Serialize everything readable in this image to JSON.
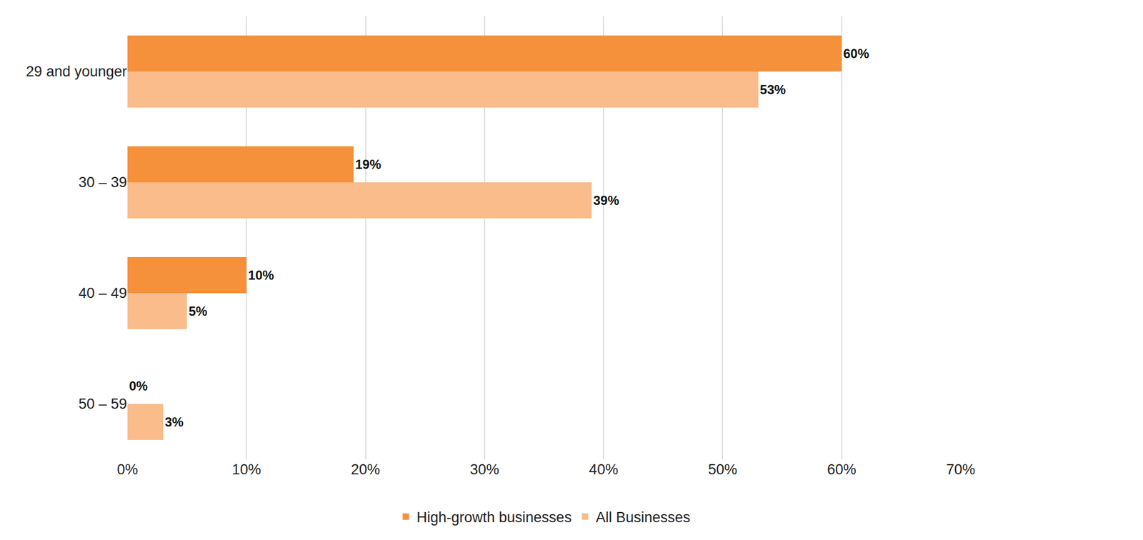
{
  "chart_data": {
    "type": "bar",
    "orientation": "horizontal",
    "categories": [
      "29 and younger",
      "30 – 39",
      "40 – 49",
      "50 – 59"
    ],
    "series": [
      {
        "name": "High-growth businesses",
        "color": "#f5903b",
        "values": [
          60,
          19,
          10,
          0
        ],
        "value_labels": [
          "60%",
          "19%",
          "10%",
          "0%"
        ]
      },
      {
        "name": "All Businesses",
        "color": "#f9bc8a",
        "values": [
          53,
          39,
          5,
          3
        ],
        "value_labels": [
          "53%",
          "39%",
          "5%",
          "3%"
        ]
      }
    ],
    "xlim": [
      0,
      70
    ],
    "xticks": [
      {
        "value": 0,
        "label": "0%"
      },
      {
        "value": 10,
        "label": "10%"
      },
      {
        "value": 20,
        "label": "20%"
      },
      {
        "value": 30,
        "label": "30%"
      },
      {
        "value": 40,
        "label": "40%"
      },
      {
        "value": 50,
        "label": "50%"
      },
      {
        "value": 60,
        "label": "60%"
      },
      {
        "value": 70,
        "label": "70%"
      }
    ],
    "grid": true,
    "data_labels": true,
    "legend": "bottom"
  }
}
